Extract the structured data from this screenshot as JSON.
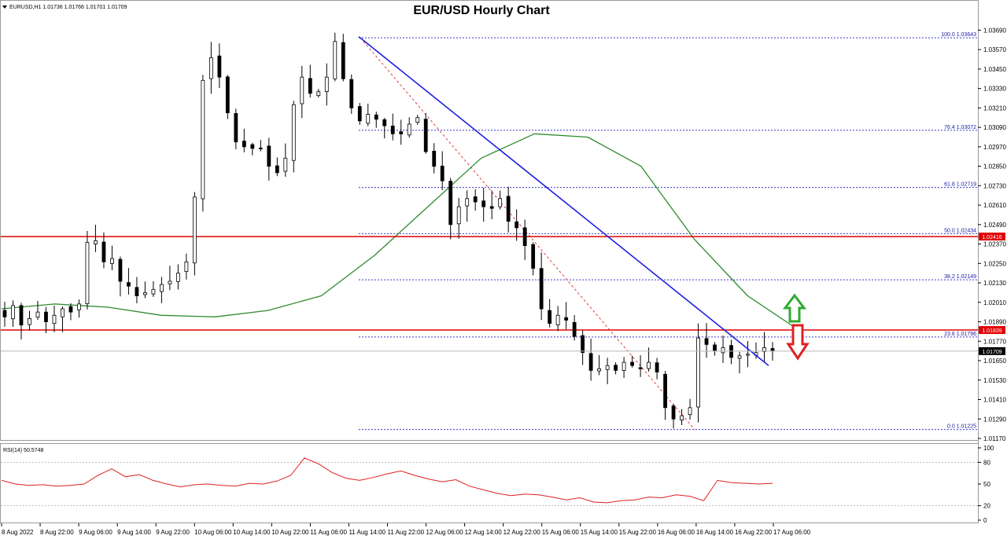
{
  "header": {
    "symbol_info": "EURUSD,H1  1.01736 1.01766 1.01701 1.01709",
    "title": "EUR/USD Hourly Chart"
  },
  "colors": {
    "bull_candle": "#ffffff",
    "bear_candle": "#000000",
    "moving_average": "#2e8b2e",
    "trend_line": "#1f1fe0",
    "fib_levels": "#3a3ad0",
    "fib_diagonal": "#e03a3a",
    "support_resistance": "#e00000",
    "rsi_line": "#e02020",
    "up_arrow": "#2faa2f",
    "down_arrow": "#e02020",
    "current_price_badge": "#000000",
    "resistance_badge": "#e00000"
  },
  "chart_data": [
    {
      "type": "candlestick",
      "title": "EUR/USD Hourly Chart",
      "ylim": [
        1.0117,
        1.0375
      ],
      "x_ticks": [
        "8 Aug 2022",
        "8 Aug 22:00",
        "9 Aug 06:00",
        "9 Aug 14:00",
        "9 Aug 22:00",
        "10 Aug 06:00",
        "10 Aug 14:00",
        "10 Aug 22:00",
        "11 Aug 06:00",
        "11 Aug 14:00",
        "11 Aug 22:00",
        "12 Aug 06:00",
        "12 Aug 14:00",
        "12 Aug 22:00",
        "15 Aug 06:00",
        "15 Aug 14:00",
        "15 Aug 22:00",
        "16 Aug 06:00",
        "16 Aug 14:00",
        "16 Aug 22:00",
        "17 Aug 06:00"
      ],
      "y_ticks": [
        "1.03690",
        "1.03570",
        "1.03450",
        "1.03330",
        "1.03210",
        "1.03090",
        "1.02970",
        "1.02850",
        "1.02730",
        "1.02610",
        "1.02490",
        "1.02370",
        "1.02250",
        "1.02130",
        "1.02010",
        "1.01890",
        "1.01770",
        "1.01650",
        "1.01530",
        "1.01410",
        "1.01290",
        "1.01170"
      ],
      "price_path": [
        1.0192,
        1.0199,
        1.0187,
        1.0191,
        1.0195,
        1.0189,
        1.0193,
        1.0197,
        1.0195,
        1.02,
        1.0238,
        1.0239,
        1.0226,
        1.0228,
        1.0214,
        1.0211,
        1.0205,
        1.0207,
        1.0209,
        1.0212,
        1.0214,
        1.0219,
        1.0226,
        1.0266,
        1.0338,
        1.0352,
        1.034,
        1.0318,
        1.03,
        1.0297,
        1.0296,
        1.0296,
        1.0285,
        1.0281,
        1.029,
        1.0323,
        1.034,
        1.033,
        1.0331,
        1.034,
        1.0362,
        1.0339,
        1.0321,
        1.0313,
        1.0317,
        1.0314,
        1.031,
        1.0305,
        1.0305,
        1.0311,
        1.0315,
        1.0294,
        1.0285,
        1.0276,
        1.0249,
        1.026,
        1.0265,
        1.0263,
        1.026,
        1.0259,
        1.0265,
        1.0251,
        1.0247,
        1.0236,
        1.0222,
        1.0197,
        1.0188,
        1.0193,
        1.019,
        1.018,
        1.017,
        1.0159,
        1.016,
        1.0162,
        1.0159,
        1.0164,
        1.0162,
        1.016,
        1.0164,
        1.0158,
        1.0136,
        1.0129,
        1.0131,
        1.0136,
        1.0179,
        1.0175,
        1.0171,
        1.0173,
        1.0167,
        1.0168,
        1.0169,
        1.017,
        1.0173,
        1.0171
      ],
      "moving_average": [
        1.0197,
        1.02,
        1.0198,
        1.0193,
        1.0192,
        1.0196,
        1.0205,
        1.023,
        1.026,
        1.029,
        1.0305,
        1.0303,
        1.0285,
        1.024,
        1.0205,
        1.0183
      ],
      "current_price": "1.01709",
      "resistance_levels": [
        {
          "label": "1.02416",
          "value": 1.02416
        },
        {
          "label": "1.01839",
          "value": 1.01839
        }
      ],
      "trend_line": {
        "from": {
          "time": "11 Aug 14:00",
          "price": 1.0365
        },
        "to": {
          "time": "17 Aug 02:00",
          "price": 1.0162
        }
      },
      "fibonacci": {
        "high": 1.03643,
        "low": 1.01225,
        "levels": [
          {
            "label": "100.0 1.03643",
            "value": 1.03643
          },
          {
            "label": "76.4 1.03072",
            "value": 1.03072
          },
          {
            "label": "61.8 1.02719",
            "value": 1.02719
          },
          {
            "label": "50.0 1.02434",
            "value": 1.02434
          },
          {
            "label": "38.2 1.02149",
            "value": 1.02149
          },
          {
            "label": "23.6 1.01796",
            "value": 1.01796
          },
          {
            "label": "0.0 1.01225",
            "value": 1.01225
          }
        ]
      }
    },
    {
      "type": "line",
      "title": "RSI(14) 50.5748",
      "ylim": [
        0,
        100
      ],
      "y_ticks": [
        "100",
        "80",
        "50",
        "20",
        "0"
      ],
      "reference_levels": [
        80,
        20
      ],
      "values": [
        55,
        50,
        48,
        49,
        47,
        48,
        50,
        62,
        71,
        60,
        63,
        55,
        50,
        46,
        49,
        50,
        48,
        47,
        51,
        50,
        54,
        62,
        86,
        78,
        66,
        58,
        55,
        59,
        64,
        68,
        62,
        57,
        53,
        56,
        47,
        42,
        37,
        34,
        36,
        35,
        32,
        28,
        31,
        25,
        24,
        27,
        28,
        32,
        31,
        35,
        33,
        27,
        55,
        52,
        51,
        50,
        51
      ]
    }
  ]
}
